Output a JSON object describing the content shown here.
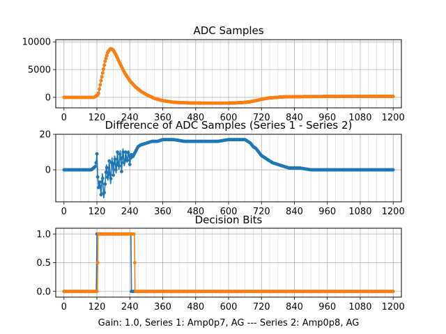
{
  "figure": {
    "xlabel": "Gain: 1.0, Series 1: Amp0p7, AG --- Series 2: Amp0p8, AG"
  },
  "colors": {
    "series1": "#1f77b4",
    "series2": "#ff7f0e"
  },
  "chart_data": [
    {
      "type": "scatter",
      "title": "ADC Samples",
      "xlim": [
        -30,
        1230
      ],
      "ylim": [
        -1900,
        10400
      ],
      "xticks": [
        0,
        120,
        240,
        360,
        480,
        600,
        720,
        840,
        960,
        1080,
        1200
      ],
      "yticks": [
        0,
        5000,
        10000
      ],
      "series": [
        {
          "name": "Series 1",
          "x": [
            0,
            110,
            125,
            135,
            150,
            160,
            170,
            180,
            190,
            205,
            220,
            240,
            260,
            280,
            300,
            330,
            360,
            400,
            450,
            500,
            550,
            600,
            650,
            680,
            700,
            720,
            750,
            780,
            800,
            850,
            900,
            1000,
            1100,
            1200
          ],
          "y": [
            0,
            0,
            500,
            3000,
            6500,
            8200,
            8800,
            8500,
            7600,
            6000,
            4500,
            3000,
            1900,
            1100,
            500,
            -200,
            -600,
            -900,
            -1000,
            -1050,
            -1050,
            -1050,
            -950,
            -800,
            -600,
            -350,
            -100,
            0,
            80,
            120,
            140,
            150,
            160,
            160
          ]
        },
        {
          "name": "Series 2",
          "x": [
            0,
            110,
            125,
            135,
            150,
            160,
            170,
            180,
            190,
            205,
            220,
            240,
            260,
            280,
            300,
            330,
            360,
            400,
            450,
            500,
            550,
            600,
            650,
            680,
            700,
            720,
            750,
            780,
            800,
            850,
            900,
            1000,
            1100,
            1200
          ],
          "y": [
            0,
            0,
            500,
            3000,
            6500,
            8200,
            8800,
            8500,
            7600,
            6000,
            4500,
            3000,
            1900,
            1100,
            500,
            -200,
            -600,
            -900,
            -1000,
            -1050,
            -1050,
            -1050,
            -950,
            -800,
            -600,
            -350,
            -100,
            0,
            80,
            120,
            140,
            150,
            160,
            160
          ]
        }
      ]
    },
    {
      "type": "scatter",
      "title": "Difference of ADC Samples (Series 1 - Series 2)",
      "xlim": [
        -30,
        1230
      ],
      "ylim": [
        -18,
        20
      ],
      "xticks": [
        0,
        120,
        240,
        360,
        480,
        600,
        720,
        840,
        960,
        1080,
        1200
      ],
      "yticks": [
        0,
        20
      ],
      "series": [
        {
          "name": "Series 1 - Series 2",
          "x": [
            0,
            50,
            100,
            115,
            118,
            120,
            123,
            126,
            130,
            135,
            140,
            145,
            150,
            155,
            160,
            165,
            170,
            175,
            180,
            185,
            190,
            195,
            200,
            205,
            210,
            215,
            220,
            225,
            230,
            235,
            240,
            245,
            250,
            260,
            270,
            280,
            300,
            320,
            340,
            360,
            400,
            440,
            480,
            520,
            560,
            600,
            640,
            660,
            670,
            680,
            690,
            700,
            710,
            720,
            740,
            760,
            780,
            800,
            820,
            860,
            900,
            960,
            1020,
            1080,
            1140,
            1200
          ],
          "y": [
            0,
            0,
            0,
            2,
            5,
            9,
            -4,
            -10,
            -6,
            -14,
            -2,
            -16,
            -8,
            3,
            -6,
            5,
            -8,
            7,
            -3,
            8,
            -2,
            10,
            0,
            11,
            -1,
            12,
            2,
            10,
            4,
            11,
            3,
            9,
            7,
            10,
            13,
            14,
            15,
            16,
            16,
            17,
            17,
            16,
            16,
            16,
            16,
            17,
            17,
            17,
            16,
            15,
            13,
            12,
            10,
            8,
            6,
            4,
            3,
            2,
            1,
            1,
            0,
            0,
            0,
            0,
            0,
            0
          ]
        }
      ]
    },
    {
      "type": "scatter",
      "title": "Decision Bits",
      "xlim": [
        -30,
        1230
      ],
      "ylim": [
        -0.1,
        1.1
      ],
      "xticks": [
        0,
        120,
        240,
        360,
        480,
        600,
        720,
        840,
        960,
        1080,
        1200
      ],
      "yticks": [
        0.0,
        0.5,
        1.0
      ],
      "series": [
        {
          "name": "Series 1",
          "x": [
            0,
            118,
            120,
            244,
            246,
            1200
          ],
          "y": [
            0,
            0,
            1,
            1,
            0,
            0
          ]
        },
        {
          "name": "Series 2",
          "x": [
            0,
            122,
            124,
            257,
            259,
            1200
          ],
          "y": [
            0,
            0,
            1,
            1,
            0,
            0
          ]
        }
      ]
    }
  ],
  "tick_labels": {
    "x": [
      "0",
      "120",
      "240",
      "360",
      "480",
      "600",
      "720",
      "840",
      "960",
      "1080",
      "1200"
    ],
    "y0": [
      "0",
      "5000",
      "10000"
    ],
    "y1": [
      "0",
      "20"
    ],
    "y2": [
      "0.0",
      "0.5",
      "1.0"
    ]
  }
}
